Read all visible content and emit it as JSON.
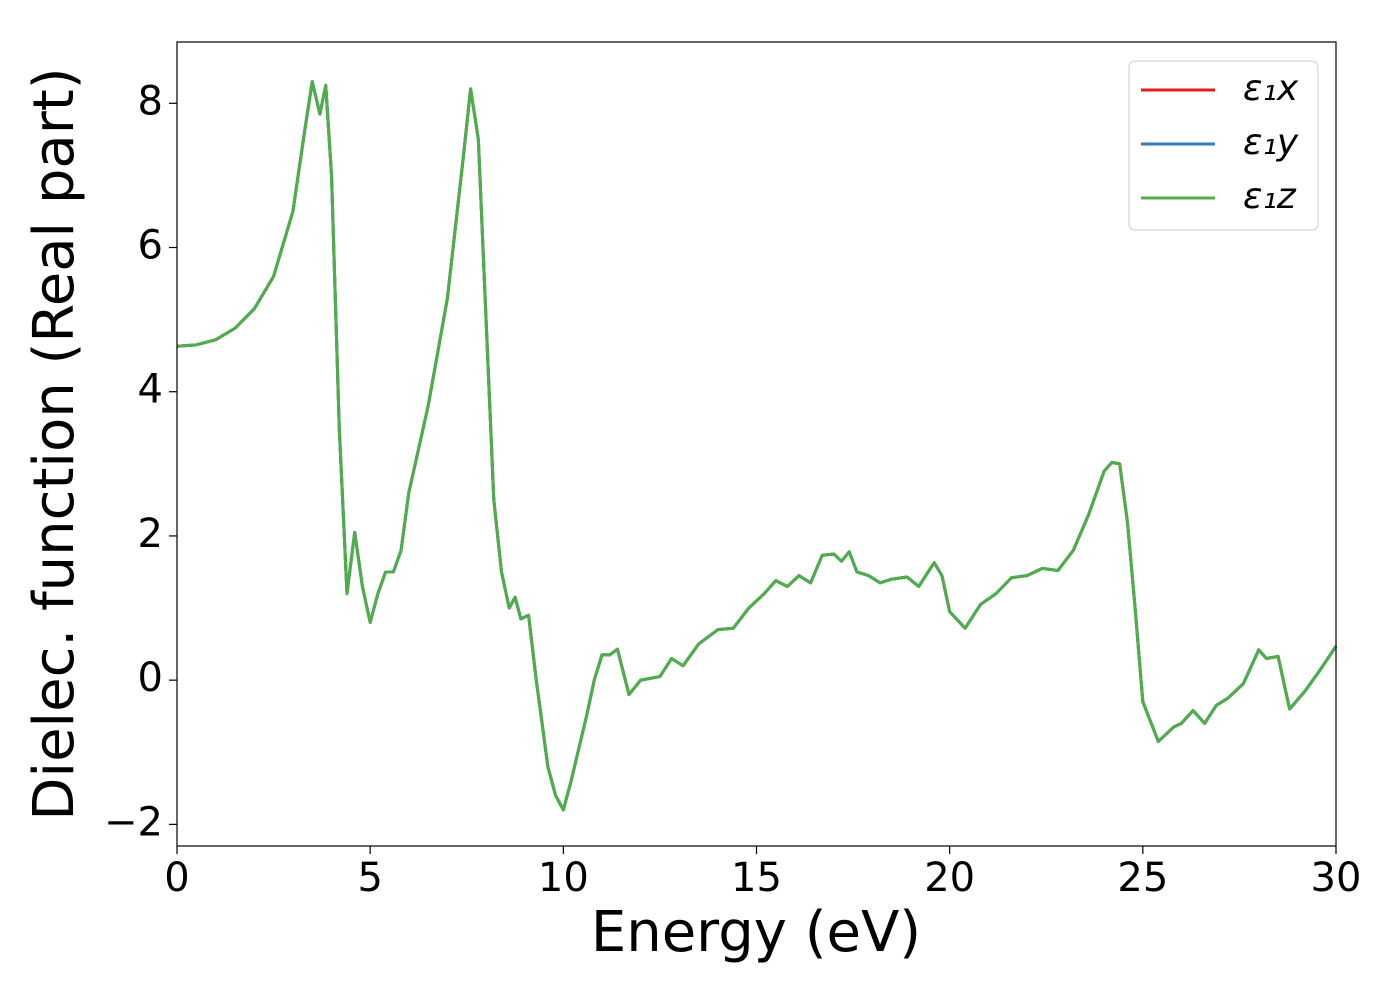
{
  "chart_data": {
    "type": "line",
    "xlabel": "Energy (eV)",
    "ylabel": "Dielec. function (Real part)",
    "x": [
      0,
      0.5,
      1.0,
      1.5,
      2.0,
      2.5,
      3.0,
      3.3,
      3.5,
      3.7,
      3.85,
      4.0,
      4.2,
      4.4,
      4.6,
      4.8,
      5.0,
      5.2,
      5.4,
      5.6,
      5.8,
      6.0,
      6.5,
      7.0,
      7.4,
      7.6,
      7.8,
      8.0,
      8.2,
      8.4,
      8.6,
      8.75,
      8.9,
      9.1,
      9.3,
      9.6,
      9.8,
      10.0,
      10.2,
      10.6,
      10.8,
      11.0,
      11.2,
      11.4,
      11.7,
      12.0,
      12.5,
      12.8,
      13.1,
      13.5,
      14.0,
      14.4,
      14.8,
      15.2,
      15.5,
      15.8,
      16.1,
      16.4,
      16.7,
      17.0,
      17.2,
      17.4,
      17.6,
      17.9,
      18.2,
      18.5,
      18.9,
      19.2,
      19.6,
      19.8,
      20.0,
      20.4,
      20.8,
      21.2,
      21.6,
      22.0,
      22.4,
      22.8,
      23.2,
      23.6,
      24.0,
      24.2,
      24.4,
      24.6,
      24.8,
      25.0,
      25.4,
      25.8,
      26.0,
      26.3,
      26.6,
      26.9,
      27.2,
      27.6,
      28.0,
      28.2,
      28.5,
      28.8,
      29.2,
      29.6,
      30.0
    ],
    "series": [
      {
        "name": "ε₁x",
        "color": "#e41a1c",
        "values": [
          4.63,
          4.65,
          4.72,
          4.88,
          5.15,
          5.6,
          6.5,
          7.6,
          8.3,
          7.85,
          8.25,
          7.0,
          3.5,
          1.2,
          2.05,
          1.3,
          0.8,
          1.2,
          1.5,
          1.5,
          1.8,
          2.6,
          3.8,
          5.3,
          7.2,
          8.2,
          7.5,
          5.0,
          2.5,
          1.5,
          1.0,
          1.15,
          0.85,
          0.9,
          0.0,
          -1.2,
          -1.6,
          -1.8,
          -1.4,
          -0.5,
          0.0,
          0.35,
          0.35,
          0.43,
          -0.2,
          0.0,
          0.05,
          0.3,
          0.2,
          0.5,
          0.7,
          0.72,
          1.0,
          1.2,
          1.38,
          1.3,
          1.45,
          1.35,
          1.73,
          1.75,
          1.65,
          1.78,
          1.5,
          1.45,
          1.35,
          1.4,
          1.43,
          1.3,
          1.63,
          1.45,
          0.95,
          0.72,
          1.05,
          1.2,
          1.42,
          1.45,
          1.55,
          1.52,
          1.8,
          2.3,
          2.9,
          3.02,
          3.0,
          2.2,
          1.0,
          -0.3,
          -0.85,
          -0.65,
          -0.6,
          -0.42,
          -0.6,
          -0.35,
          -0.25,
          -0.05,
          0.42,
          0.3,
          0.33,
          -0.4,
          -0.15,
          0.15,
          0.47
        ]
      },
      {
        "name": "ε₁y",
        "color": "#377eb8",
        "values": [
          4.63,
          4.65,
          4.72,
          4.88,
          5.15,
          5.6,
          6.5,
          7.6,
          8.3,
          7.85,
          8.25,
          7.0,
          3.5,
          1.2,
          2.05,
          1.3,
          0.8,
          1.2,
          1.5,
          1.5,
          1.8,
          2.6,
          3.8,
          5.3,
          7.2,
          8.2,
          7.5,
          5.0,
          2.5,
          1.5,
          1.0,
          1.15,
          0.85,
          0.9,
          0.0,
          -1.2,
          -1.6,
          -1.8,
          -1.4,
          -0.5,
          0.0,
          0.35,
          0.35,
          0.43,
          -0.2,
          0.0,
          0.05,
          0.3,
          0.2,
          0.5,
          0.7,
          0.72,
          1.0,
          1.2,
          1.38,
          1.3,
          1.45,
          1.35,
          1.73,
          1.75,
          1.65,
          1.78,
          1.5,
          1.45,
          1.35,
          1.4,
          1.43,
          1.3,
          1.63,
          1.45,
          0.95,
          0.72,
          1.05,
          1.2,
          1.42,
          1.45,
          1.55,
          1.52,
          1.8,
          2.3,
          2.9,
          3.02,
          3.0,
          2.2,
          1.0,
          -0.3,
          -0.85,
          -0.65,
          -0.6,
          -0.42,
          -0.6,
          -0.35,
          -0.25,
          -0.05,
          0.42,
          0.3,
          0.33,
          -0.4,
          -0.15,
          0.15,
          0.47
        ]
      },
      {
        "name": "ε₁z",
        "color": "#4daf4a",
        "values": [
          4.63,
          4.65,
          4.72,
          4.88,
          5.15,
          5.6,
          6.5,
          7.6,
          8.3,
          7.85,
          8.25,
          7.0,
          3.5,
          1.2,
          2.05,
          1.3,
          0.8,
          1.2,
          1.5,
          1.5,
          1.8,
          2.6,
          3.8,
          5.3,
          7.2,
          8.2,
          7.5,
          5.0,
          2.5,
          1.5,
          1.0,
          1.15,
          0.85,
          0.9,
          0.0,
          -1.2,
          -1.6,
          -1.8,
          -1.4,
          -0.5,
          0.0,
          0.35,
          0.35,
          0.43,
          -0.2,
          0.0,
          0.05,
          0.3,
          0.2,
          0.5,
          0.7,
          0.72,
          1.0,
          1.2,
          1.38,
          1.3,
          1.45,
          1.35,
          1.73,
          1.75,
          1.65,
          1.78,
          1.5,
          1.45,
          1.35,
          1.4,
          1.43,
          1.3,
          1.63,
          1.45,
          0.95,
          0.72,
          1.05,
          1.2,
          1.42,
          1.45,
          1.55,
          1.52,
          1.8,
          2.3,
          2.9,
          3.02,
          3.0,
          2.2,
          1.0,
          -0.3,
          -0.85,
          -0.65,
          -0.6,
          -0.42,
          -0.6,
          -0.35,
          -0.25,
          -0.05,
          0.42,
          0.3,
          0.33,
          -0.4,
          -0.15,
          0.15,
          0.47
        ]
      }
    ],
    "xlim": [
      0,
      30
    ],
    "xticks": [
      0,
      5,
      10,
      15,
      20,
      25,
      30
    ],
    "ylim": [
      -2.3,
      8.85
    ],
    "yticks": [
      {
        "value": -2,
        "label": "−2"
      },
      0,
      2,
      4,
      6,
      8
    ],
    "grid": false,
    "legend": "upper right"
  }
}
